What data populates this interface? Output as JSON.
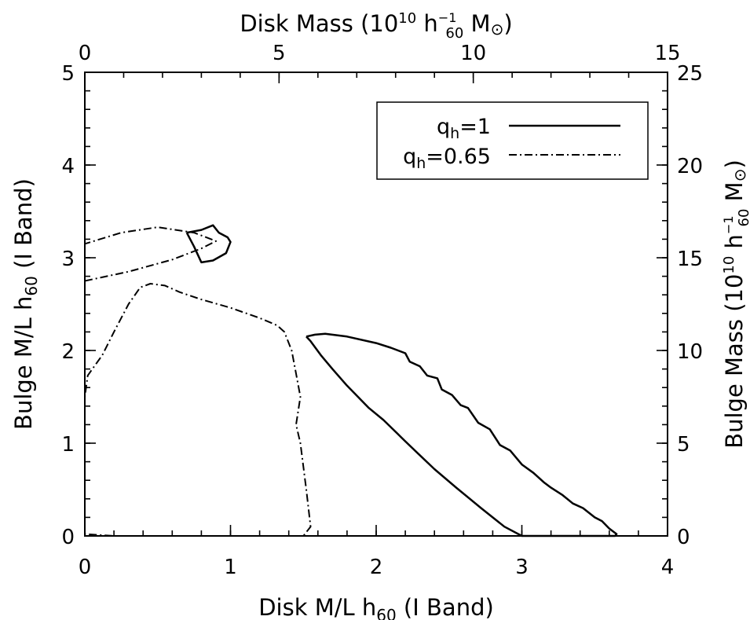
{
  "chart_data": {
    "type": "line",
    "x_axis_bottom": {
      "label_main": "Disk M/L h",
      "label_sub": "60",
      "label_tail": " (I Band)",
      "ticks": [
        "0",
        "1",
        "2",
        "3",
        "4"
      ],
      "range": [
        0,
        4
      ]
    },
    "x_axis_top": {
      "label_main": "Disk Mass (10",
      "label_sup": "10",
      "label_mid": " h",
      "label_h_sup": "−1",
      "label_h_sub": "60",
      "label_tail": " M",
      "label_sun": "⊙",
      "label_close": ")",
      "ticks": [
        "0",
        "5",
        "10",
        "15"
      ],
      "range": [
        0,
        15
      ]
    },
    "y_axis_left": {
      "label_main": "Bulge M/L h",
      "label_sub": "60",
      "label_tail": " (I Band)",
      "ticks": [
        "0",
        "1",
        "2",
        "3",
        "4",
        "5"
      ],
      "range": [
        0,
        5
      ]
    },
    "y_axis_right": {
      "label_main": "Bulge Mass (10",
      "label_sup": "10",
      "label_mid": " h",
      "label_h_sup": "−1",
      "label_h_sub": "60",
      "label_tail": " M",
      "label_sun": "⊙",
      "label_close": ")",
      "ticks": [
        "0",
        "5",
        "10",
        "15",
        "20",
        "25"
      ],
      "range": [
        0,
        25
      ]
    },
    "legend": {
      "placement": "top-right",
      "entries": [
        {
          "q": "q",
          "sub": "h",
          "val": "=1",
          "style": "solid"
        },
        {
          "q": "q",
          "sub": "h",
          "val": "=0.65",
          "style": "dashdot"
        }
      ]
    },
    "series": [
      {
        "style": "solid",
        "contours": [
          [
            [
              1.52,
              2.15
            ],
            [
              1.58,
              2.17
            ],
            [
              1.65,
              2.18
            ],
            [
              1.8,
              2.15
            ],
            [
              2.0,
              2.08
            ],
            [
              2.1,
              2.03
            ],
            [
              2.2,
              1.97
            ],
            [
              2.23,
              1.88
            ],
            [
              2.3,
              1.83
            ],
            [
              2.35,
              1.73
            ],
            [
              2.42,
              1.7
            ],
            [
              2.45,
              1.58
            ],
            [
              2.52,
              1.52
            ],
            [
              2.58,
              1.41
            ],
            [
              2.63,
              1.38
            ],
            [
              2.7,
              1.22
            ],
            [
              2.78,
              1.15
            ],
            [
              2.85,
              0.98
            ],
            [
              2.92,
              0.92
            ],
            [
              3.0,
              0.77
            ],
            [
              3.08,
              0.68
            ],
            [
              3.15,
              0.58
            ],
            [
              3.2,
              0.52
            ],
            [
              3.28,
              0.44
            ],
            [
              3.35,
              0.35
            ],
            [
              3.42,
              0.3
            ],
            [
              3.5,
              0.2
            ],
            [
              3.55,
              0.16
            ],
            [
              3.6,
              0.08
            ],
            [
              3.65,
              0.02
            ],
            [
              3.64,
              0.0
            ],
            [
              3.0,
              0.0
            ],
            [
              2.88,
              0.1
            ],
            [
              2.72,
              0.3
            ],
            [
              2.55,
              0.52
            ],
            [
              2.4,
              0.72
            ],
            [
              2.28,
              0.9
            ],
            [
              2.2,
              1.02
            ],
            [
              2.05,
              1.25
            ],
            [
              1.95,
              1.38
            ],
            [
              1.8,
              1.62
            ],
            [
              1.7,
              1.8
            ],
            [
              1.62,
              1.95
            ],
            [
              1.55,
              2.1
            ],
            [
              1.52,
              2.15
            ]
          ],
          [
            [
              0.7,
              3.27
            ],
            [
              0.8,
              3.3
            ],
            [
              0.88,
              3.35
            ],
            [
              0.92,
              3.27
            ],
            [
              0.98,
              3.22
            ],
            [
              1.0,
              3.17
            ],
            [
              0.97,
              3.05
            ],
            [
              0.88,
              2.97
            ],
            [
              0.8,
              2.95
            ],
            [
              0.75,
              3.12
            ],
            [
              0.7,
              3.27
            ]
          ]
        ]
      },
      {
        "style": "dashdot",
        "contours": [
          [
            [
              0.0,
              0.02
            ],
            [
              0.0,
              1.5
            ],
            [
              0.02,
              1.73
            ],
            [
              0.12,
              1.95
            ],
            [
              0.2,
              2.2
            ],
            [
              0.3,
              2.5
            ],
            [
              0.38,
              2.68
            ],
            [
              0.45,
              2.72
            ],
            [
              0.55,
              2.7
            ],
            [
              0.65,
              2.63
            ],
            [
              0.8,
              2.55
            ],
            [
              1.0,
              2.46
            ],
            [
              1.2,
              2.35
            ],
            [
              1.32,
              2.27
            ],
            [
              1.37,
              2.2
            ],
            [
              1.42,
              2.0
            ],
            [
              1.45,
              1.75
            ],
            [
              1.48,
              1.5
            ],
            [
              1.45,
              1.2
            ],
            [
              1.48,
              1.0
            ],
            [
              1.52,
              0.5
            ],
            [
              1.55,
              0.1
            ],
            [
              1.5,
              0.0
            ],
            [
              0.2,
              0.0
            ],
            [
              0.0,
              0.02
            ]
          ],
          [
            [
              0.0,
              2.75
            ],
            [
              0.3,
              2.85
            ],
            [
              0.6,
              2.98
            ],
            [
              0.8,
              3.1
            ],
            [
              0.9,
              3.18
            ],
            [
              0.75,
              3.27
            ],
            [
              0.5,
              3.33
            ],
            [
              0.25,
              3.27
            ],
            [
              0.0,
              3.15
            ]
          ]
        ]
      }
    ]
  }
}
